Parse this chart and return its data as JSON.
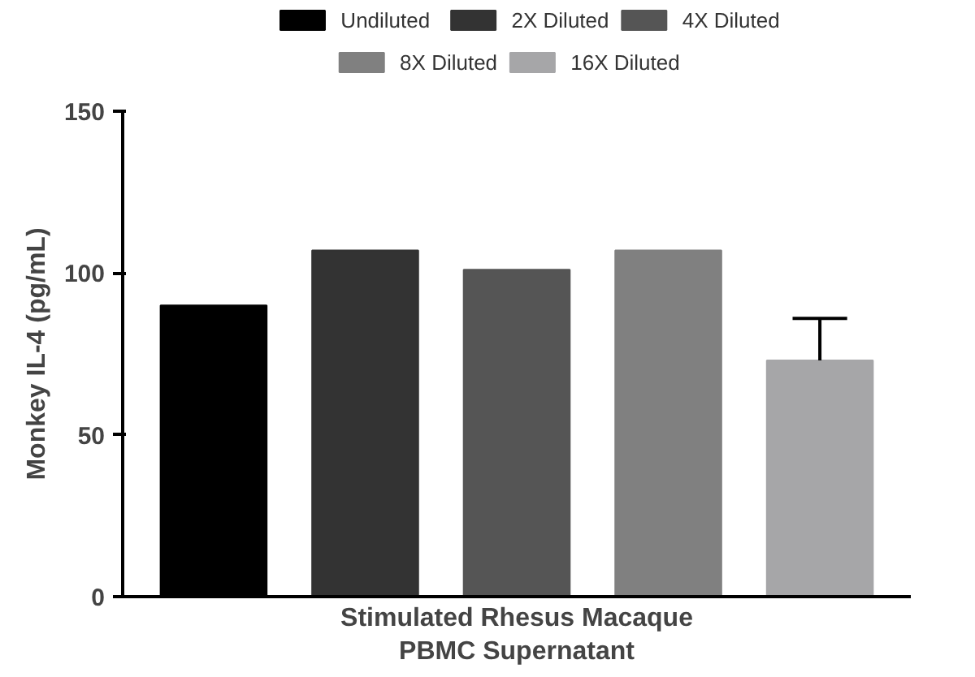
{
  "chart_data": {
    "type": "bar",
    "categories": [
      null
    ],
    "xlabel": "Stimulated Rhesus Macaque\nPBMC Supernatant",
    "ylabel": "Monkey IL-4 (pg/mL)",
    "ylim": [
      0,
      150
    ],
    "yticks": [
      0,
      50,
      100,
      150
    ],
    "grid": false,
    "legend": "top",
    "series": [
      {
        "name": "Undiluted",
        "color": "#000000",
        "values": [
          90
        ]
      },
      {
        "name": "2X Diluted",
        "color": "#333333",
        "values": [
          107
        ]
      },
      {
        "name": "4X Diluted",
        "color": "#555555",
        "values": [
          101
        ]
      },
      {
        "name": "8X Diluted",
        "color": "#808080",
        "values": [
          107
        ]
      },
      {
        "name": "16X Diluted",
        "color": "#a6a6a8",
        "values": [
          73
        ],
        "errors": [
          [
            73,
            86
          ]
        ]
      }
    ]
  }
}
